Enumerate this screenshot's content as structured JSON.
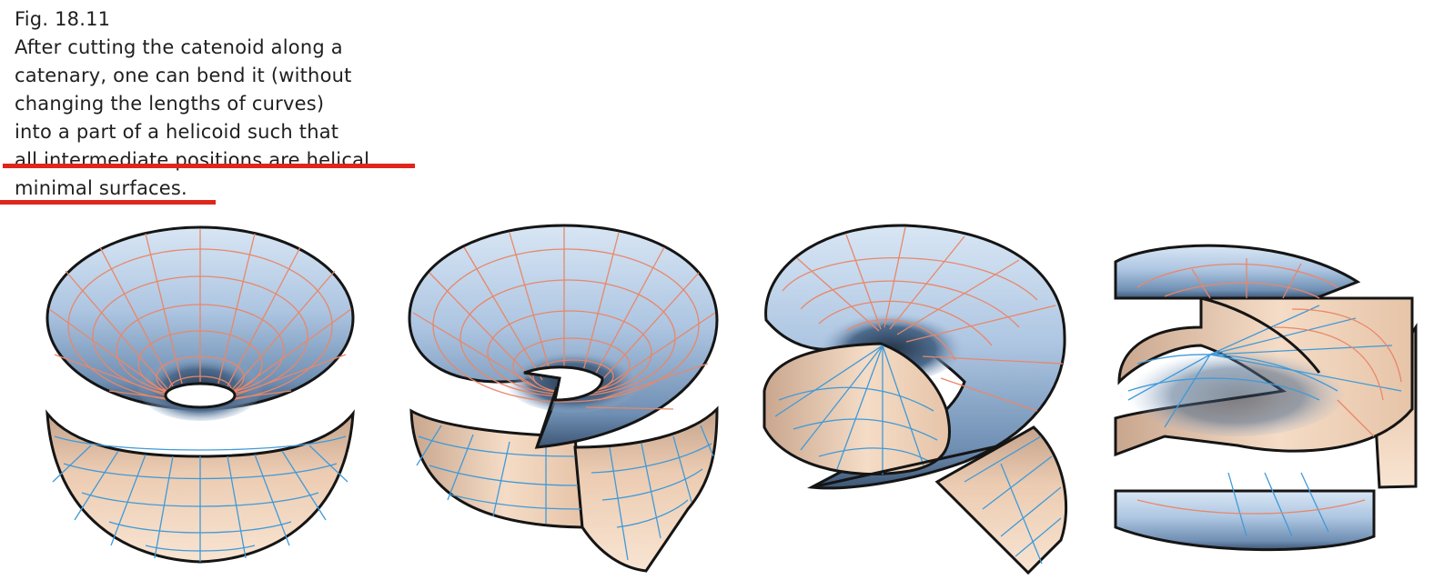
{
  "figure": {
    "label": "Fig. 18.11",
    "caption_lines": [
      "After cutting the catenoid along a",
      "catenary, one can bend it (without",
      "changing the lengths of curves)",
      "into a part of a helicoid such that",
      "all intermediate positions are helical",
      "minimal surfaces."
    ]
  },
  "colors": {
    "highlight_underline": "#e0251b",
    "surface_top": "#bcd2ea",
    "surface_dark": "#53708f",
    "surface_bottom": "#f3d7bf",
    "grid_orange": "#e8876a",
    "grid_blue": "#3f9ad8",
    "outline": "#151515"
  },
  "panels": [
    {
      "stage": "catenoid",
      "icon": "catenoid-surface-icon"
    },
    {
      "stage": "cut-catenoid",
      "icon": "cut-catenoid-surface-icon"
    },
    {
      "stage": "intermediate-helical-surface",
      "icon": "helical-surface-icon"
    },
    {
      "stage": "helicoid",
      "icon": "helicoid-surface-icon"
    }
  ]
}
